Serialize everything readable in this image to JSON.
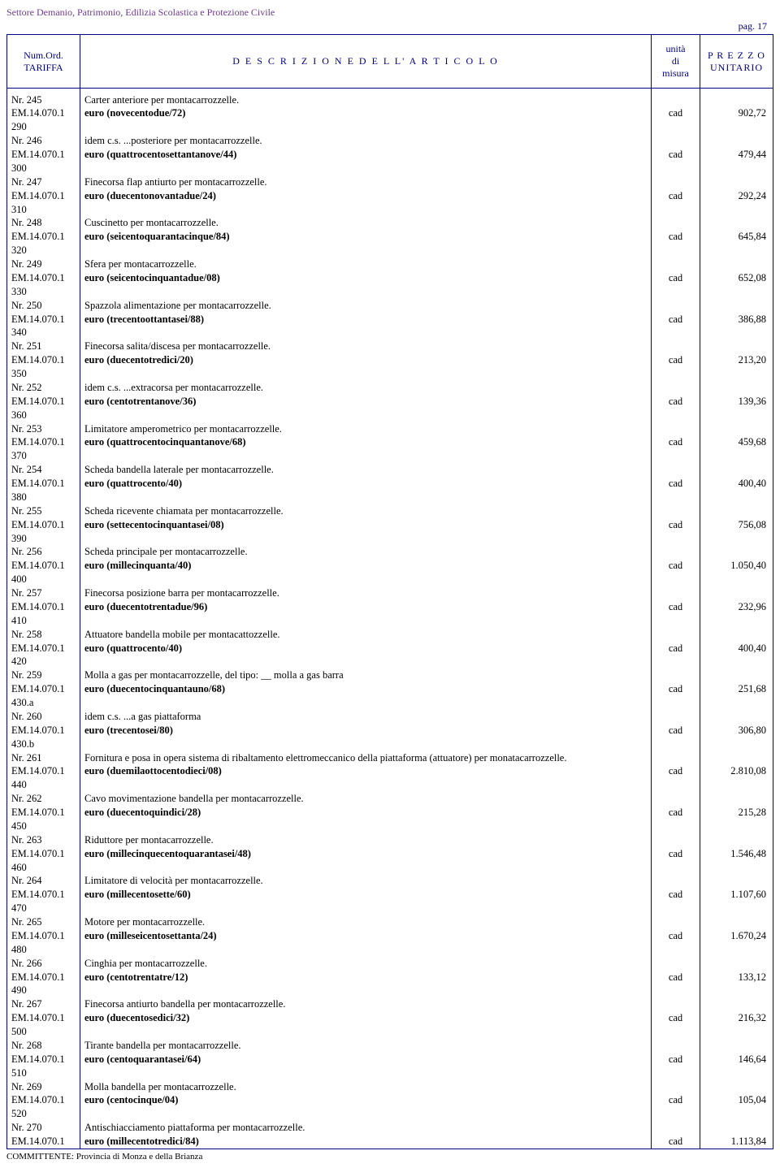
{
  "header": {
    "title": "Settore Demanio, Patrimonio, Edilizia Scolastica e Protezione Civile",
    "page": "pag. 17"
  },
  "columns": {
    "tariffa_line1": "Num.Ord.",
    "tariffa_line2": "TARIFFA",
    "descrizione": "D E S C R I Z I O N E   D E L L' A R T I C O L O",
    "unita_line1": "unità",
    "unita_line2": "di",
    "unita_line3": "misura",
    "prezzo_line1": "P R E Z Z O",
    "prezzo_line2": "UNITARIO"
  },
  "rows": [
    {
      "nr": "Nr. 245",
      "code": "EM.14.070.1",
      "sub": "290",
      "desc1": "Carter anteriore per montacarrozzelle.",
      "desc2": "euro (novecentodue/72)",
      "unit": "cad",
      "price": "902,72"
    },
    {
      "nr": "Nr. 246",
      "code": "EM.14.070.1",
      "sub": "300",
      "desc1": "idem c.s. ...posteriore per montacarrozzelle.",
      "desc2": "euro (quattrocentosettantanove/44)",
      "unit": "cad",
      "price": "479,44"
    },
    {
      "nr": "Nr. 247",
      "code": "EM.14.070.1",
      "sub": "310",
      "desc1": "Finecorsa flap antiurto per montacarrozzelle.",
      "desc2": "euro (duecentonovantadue/24)",
      "unit": "cad",
      "price": "292,24"
    },
    {
      "nr": "Nr. 248",
      "code": "EM.14.070.1",
      "sub": "320",
      "desc1": "Cuscinetto per montacarrozzelle.",
      "desc2": "euro (seicentoquarantacinque/84)",
      "unit": "cad",
      "price": "645,84"
    },
    {
      "nr": "Nr. 249",
      "code": "EM.14.070.1",
      "sub": "330",
      "desc1": "Sfera per montacarrozzelle.",
      "desc2": "euro (seicentocinquantadue/08)",
      "unit": "cad",
      "price": "652,08"
    },
    {
      "nr": "Nr. 250",
      "code": "EM.14.070.1",
      "sub": "340",
      "desc1": "Spazzola alimentazione per montacarrozzelle.",
      "desc2": "euro (trecentoottantasei/88)",
      "unit": "cad",
      "price": "386,88"
    },
    {
      "nr": "Nr. 251",
      "code": "EM.14.070.1",
      "sub": "350",
      "desc1": "Finecorsa salita/discesa per montacarrozzelle.",
      "desc2": "euro (duecentotredici/20)",
      "unit": "cad",
      "price": "213,20"
    },
    {
      "nr": "Nr. 252",
      "code": "EM.14.070.1",
      "sub": "360",
      "desc1": "idem c.s. ...extracorsa per montacarrozzelle.",
      "desc2": "euro (centotrentanove/36)",
      "unit": "cad",
      "price": "139,36"
    },
    {
      "nr": "Nr. 253",
      "code": "EM.14.070.1",
      "sub": "370",
      "desc1": "Limitatore amperometrico per montacarrozzelle.",
      "desc2": "euro (quattrocentocinquantanove/68)",
      "unit": "cad",
      "price": "459,68"
    },
    {
      "nr": "Nr. 254",
      "code": "EM.14.070.1",
      "sub": "380",
      "desc1": "Scheda bandella laterale per montacarrozzelle.",
      "desc2": "euro (quattrocento/40)",
      "unit": "cad",
      "price": "400,40"
    },
    {
      "nr": "Nr. 255",
      "code": "EM.14.070.1",
      "sub": "390",
      "desc1": "Scheda ricevente chiamata per montacarrozzelle.",
      "desc2": "euro (settecentocinquantasei/08)",
      "unit": "cad",
      "price": "756,08"
    },
    {
      "nr": "Nr. 256",
      "code": "EM.14.070.1",
      "sub": "400",
      "desc1": "Scheda principale per montacarrozzelle.",
      "desc2": "euro (millecinquanta/40)",
      "unit": "cad",
      "price": "1.050,40"
    },
    {
      "nr": "Nr. 257",
      "code": "EM.14.070.1",
      "sub": "410",
      "desc1": "Finecorsa posizione barra per montacarrozzelle.",
      "desc2": "euro (duecentotrentadue/96)",
      "unit": "cad",
      "price": "232,96"
    },
    {
      "nr": "Nr. 258",
      "code": "EM.14.070.1",
      "sub": "420",
      "desc1": "Attuatore bandella mobile per montacattozzelle.",
      "desc2": "euro (quattrocento/40)",
      "unit": "cad",
      "price": "400,40"
    },
    {
      "nr": "Nr. 259",
      "code": "EM.14.070.1",
      "sub": "430.a",
      "desc1": "Molla a gas per montacarrozzelle, del tipo: __ molla a gas barra",
      "desc2": "euro (duecentocinquantauno/68)",
      "unit": "cad",
      "price": "251,68"
    },
    {
      "nr": "Nr. 260",
      "code": "EM.14.070.1",
      "sub": "430.b",
      "desc1": "idem c.s. ...a gas piattaforma",
      "desc2": "euro (trecentosei/80)",
      "unit": "cad",
      "price": "306,80"
    },
    {
      "nr": "Nr. 261",
      "code": "EM.14.070.1",
      "sub": "440",
      "desc1": "Fornitura e posa in opera sistema di ribaltamento elettromeccanico della piattaforma (attuatore) per monatacarrozzelle.",
      "desc2": "euro (duemilaottocentodieci/08)",
      "unit": "cad",
      "price": "2.810,08"
    },
    {
      "nr": "Nr. 262",
      "code": "EM.14.070.1",
      "sub": "450",
      "desc1": "Cavo movimentazione bandella per montacarrozzelle.",
      "desc2": "euro (duecentoquindici/28)",
      "unit": "cad",
      "price": "215,28"
    },
    {
      "nr": "Nr. 263",
      "code": "EM.14.070.1",
      "sub": "460",
      "desc1": "Riduttore per montacarrozzelle.",
      "desc2": "euro (millecinquecentoquarantasei/48)",
      "unit": "cad",
      "price": "1.546,48"
    },
    {
      "nr": "Nr. 264",
      "code": "EM.14.070.1",
      "sub": "470",
      "desc1": "Limitatore di velocità per montacarrozzelle.",
      "desc2": "euro (millecentosette/60)",
      "unit": "cad",
      "price": "1.107,60"
    },
    {
      "nr": "Nr. 265",
      "code": "EM.14.070.1",
      "sub": "480",
      "desc1": "Motore per montacarrozzelle.",
      "desc2": "euro (milleseicentosettanta/24)",
      "unit": "cad",
      "price": "1.670,24"
    },
    {
      "nr": "Nr. 266",
      "code": "EM.14.070.1",
      "sub": "490",
      "desc1": "Cinghia per montacarrozzelle.",
      "desc2": "euro (centotrentatre/12)",
      "unit": "cad",
      "price": "133,12"
    },
    {
      "nr": "Nr. 267",
      "code": "EM.14.070.1",
      "sub": "500",
      "desc1": "Finecorsa antiurto bandella per montacarrozzelle.",
      "desc2": "euro (duecentosedici/32)",
      "unit": "cad",
      "price": "216,32"
    },
    {
      "nr": "Nr. 268",
      "code": "EM.14.070.1",
      "sub": "510",
      "desc1": "Tirante bandella per montacarrozzelle.",
      "desc2": "euro (centoquarantasei/64)",
      "unit": "cad",
      "price": "146,64"
    },
    {
      "nr": "Nr. 269",
      "code": "EM.14.070.1",
      "sub": "520",
      "desc1": "Molla bandella per montacarrozzelle.",
      "desc2": "euro (centocinque/04)",
      "unit": "cad",
      "price": "105,04"
    },
    {
      "nr": "Nr. 270",
      "code": "EM.14.070.1",
      "sub": "",
      "desc1": "Antischiacciamento piattaforma per montacarrozzelle.",
      "desc2": "euro (millecentotredici/84)",
      "unit": "cad",
      "price": "1.113,84"
    }
  ],
  "footer": "COMMITTENTE: Provincia di Monza e della Brianza"
}
